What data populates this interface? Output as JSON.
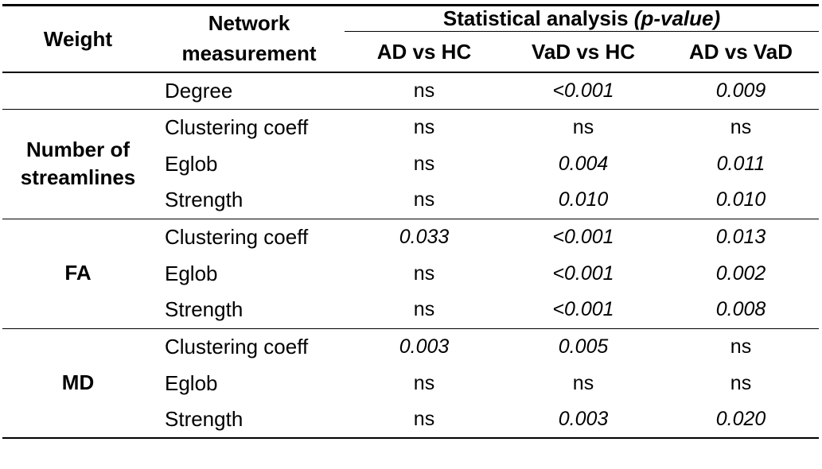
{
  "table": {
    "background": "#ffffff",
    "text_color": "#000000",
    "headers": {
      "weight": "Weight",
      "measurement": "Network measurement",
      "stat_prefix": "Statistical analysis ",
      "stat_italic": "(p-value)",
      "sub": [
        "AD vs HC",
        "VaD vs HC",
        "AD vs VaD"
      ]
    },
    "groups": [
      {
        "weight": "",
        "rows": [
          {
            "measurement": "Degree",
            "values": [
              {
                "text": "ns",
                "italic": false
              },
              {
                "text": "<0.001",
                "italic": true
              },
              {
                "text": "0.009",
                "italic": true
              }
            ]
          }
        ]
      },
      {
        "weight": "Number of streamlines",
        "rows": [
          {
            "measurement": "Clustering coeff",
            "values": [
              {
                "text": "ns",
                "italic": false
              },
              {
                "text": "ns",
                "italic": false
              },
              {
                "text": "ns",
                "italic": false
              }
            ]
          },
          {
            "measurement": "Eglob",
            "values": [
              {
                "text": "ns",
                "italic": false
              },
              {
                "text": "0.004",
                "italic": true
              },
              {
                "text": "0.011",
                "italic": true
              }
            ]
          },
          {
            "measurement": "Strength",
            "values": [
              {
                "text": "ns",
                "italic": false
              },
              {
                "text": "0.010",
                "italic": true
              },
              {
                "text": "0.010",
                "italic": true
              }
            ]
          }
        ]
      },
      {
        "weight": "FA",
        "rows": [
          {
            "measurement": "Clustering coeff",
            "values": [
              {
                "text": "0.033",
                "italic": true
              },
              {
                "text": "<0.001",
                "italic": true
              },
              {
                "text": "0.013",
                "italic": true
              }
            ]
          },
          {
            "measurement": "Eglob",
            "values": [
              {
                "text": "ns",
                "italic": false
              },
              {
                "text": "<0.001",
                "italic": true
              },
              {
                "text": "0.002",
                "italic": true
              }
            ]
          },
          {
            "measurement": "Strength",
            "values": [
              {
                "text": "ns",
                "italic": false
              },
              {
                "text": "<0.001",
                "italic": true
              },
              {
                "text": "0.008",
                "italic": true
              }
            ]
          }
        ]
      },
      {
        "weight": "MD",
        "rows": [
          {
            "measurement": "Clustering coeff",
            "values": [
              {
                "text": "0.003",
                "italic": true
              },
              {
                "text": "0.005",
                "italic": true
              },
              {
                "text": "ns",
                "italic": false
              }
            ]
          },
          {
            "measurement": "Eglob",
            "values": [
              {
                "text": "ns",
                "italic": false
              },
              {
                "text": "ns",
                "italic": false
              },
              {
                "text": "ns",
                "italic": false
              }
            ]
          },
          {
            "measurement": "Strength",
            "values": [
              {
                "text": "ns",
                "italic": false
              },
              {
                "text": "0.003",
                "italic": true
              },
              {
                "text": "0.020",
                "italic": true
              }
            ]
          }
        ]
      }
    ]
  }
}
